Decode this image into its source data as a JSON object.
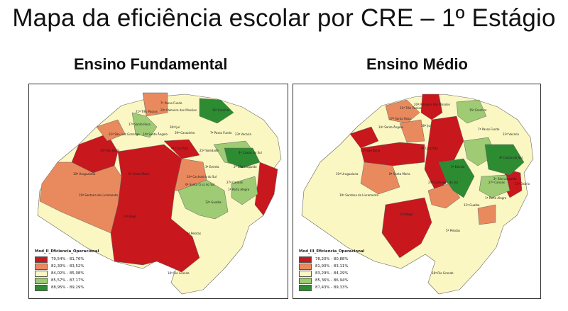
{
  "title": "Mapa da eficiência escolar por CRE – 1º Estágio",
  "colors": {
    "dark_red": "#c8171d",
    "salmon": "#e98a5e",
    "cream": "#fbf7c2",
    "light_green": "#9ecb73",
    "dark_green": "#2d8b32"
  },
  "maps": [
    {
      "subtitle": "Ensino Fundamental",
      "legend_title": "Mod_II_Eficiencia_Operacional",
      "legend": [
        {
          "range": "79,54% - 81,76%",
          "color": "#c8171d"
        },
        {
          "range": "82,30% - 83,52%",
          "color": "#e98a5e"
        },
        {
          "range": "84,02% - 85,08%",
          "color": "#fbf7c2"
        },
        {
          "range": "85,57% - 87,17%",
          "color": "#9ecb73"
        },
        {
          "range": "88,95% - 89,29%",
          "color": "#2d8b32"
        }
      ],
      "labels": [
        "7ª Passo Fundo",
        "20ª Palmeira das Missões",
        "21ª Três Passos",
        "15ª Erechim",
        "17ª Santa Rosa",
        "36ª Ijuí",
        "32ª São Luiz Gonzaga",
        "14ª Santo Ângelo",
        "9ª Cruz Alta",
        "39ª Carazinho",
        "7ª Passo Fundo",
        "23ª Vacaria",
        "35ª São Borja",
        "8ª Santa Maria",
        "10ª Uruguaiana",
        "24ª Cachoeira do Sul",
        "6ª Santa Cruz do Sul",
        "3ª Estrela",
        "2ª São Leopoldo",
        "4ª Caxias do Sul",
        "1ª Porto Alegre",
        "27ª Canoas",
        "19ª Santana do Livramento",
        "13ª Bagé",
        "12ª Guaíba",
        "5ª Pelotas",
        "18ª Rio Grande",
        "25ª Soledade"
      ]
    },
    {
      "subtitle": "Ensino Médio",
      "legend_title": "Mod_III_Eficiencia_Operacional",
      "legend": [
        {
          "range": "78,20% - 80,88%",
          "color": "#c8171d"
        },
        {
          "range": "81,93% - 83,11%",
          "color": "#e98a5e"
        },
        {
          "range": "83,29% - 84,29%",
          "color": "#fbf7c2"
        },
        {
          "range": "85,36% - 86,94%",
          "color": "#9ecb73"
        },
        {
          "range": "87,43% - 89,33%",
          "color": "#2d8b32"
        }
      ],
      "labels": [
        "20ª Palmeira das Missões",
        "21ª Três Passos",
        "15ª Erechim",
        "17ª Santa Rosa",
        "36ª Ijuí",
        "7ª Passo Fundo",
        "23ª Vacaria",
        "14ª Santo Ângelo",
        "9ª Cruz Alta",
        "35ª São Borja",
        "8ª Santa Maria",
        "10ª Uruguaiana",
        "24ª Cachoeira do Sul",
        "3ª Estrela",
        "4ª Caxias do Sul",
        "2ª São Leopoldo",
        "11ª Osório",
        "27ª Canoas",
        "1ª Porto Alegre",
        "19ª Santana do Livramento",
        "13ª Bagé",
        "12ª Guaíba",
        "5ª Pelotas",
        "18ª Rio Grande"
      ]
    }
  ]
}
